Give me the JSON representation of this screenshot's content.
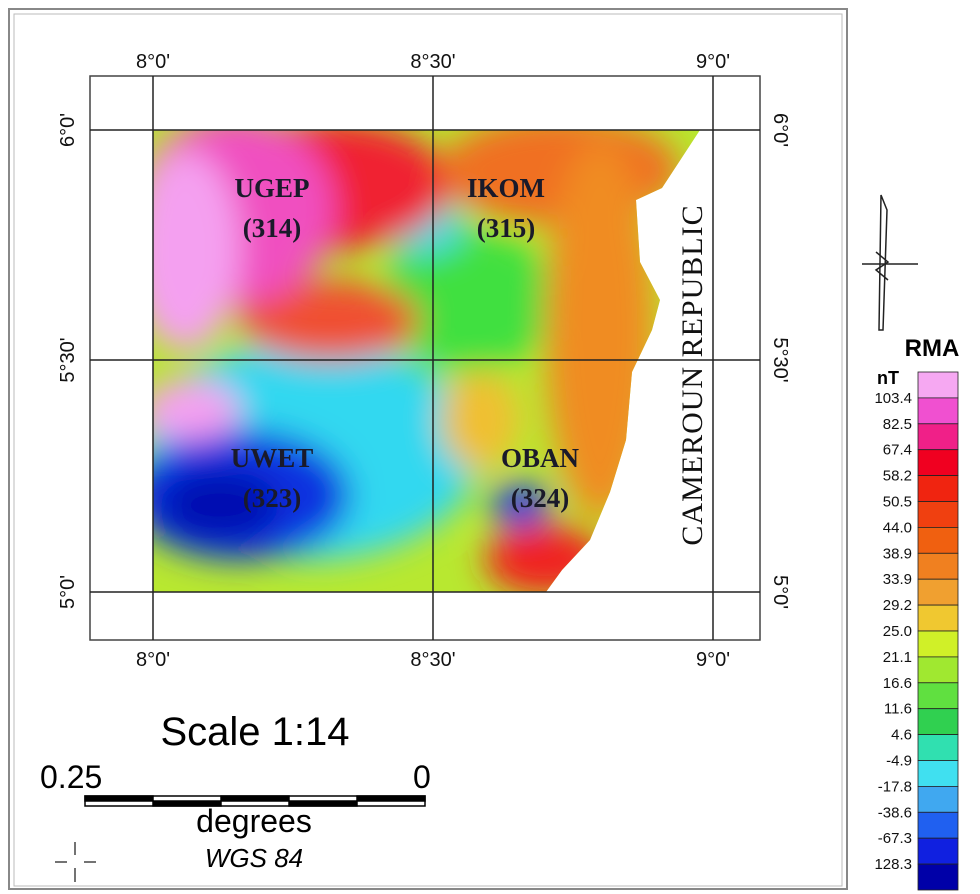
{
  "map": {
    "top_labels": [
      "8°0'",
      "8°30'",
      "9°0'"
    ],
    "bottom_labels": [
      "8°0'",
      "8°30'",
      "9°0'"
    ],
    "left_labels": [
      "6°0'",
      "5°30'",
      "5°0'"
    ],
    "right_labels": [
      "6°0'",
      "5°30'",
      "5°0'"
    ],
    "places": [
      {
        "name": "UGEP",
        "code": "(314)"
      },
      {
        "name": "IKOM",
        "code": "(315)"
      },
      {
        "name": "UWET",
        "code": "(323)"
      },
      {
        "name": "OBAN",
        "code": "(324)"
      }
    ],
    "country": "CAMEROUN REPUBLIC"
  },
  "legend": {
    "title": "RMA",
    "unit": "nT",
    "labels": [
      "103.4",
      "82.5",
      "67.4",
      "58.2",
      "50.5",
      "44.0",
      "38.9",
      "33.9",
      "29.2",
      "25.0",
      "21.1",
      "16.6",
      "11.6",
      "4.6",
      "-4.9",
      "-17.8",
      "-38.6",
      "-67.3",
      "128.3"
    ]
  },
  "scale": {
    "title": "Scale 1:14",
    "left": "0.25",
    "right": "0",
    "unit": "degrees",
    "datum": "WGS 84"
  }
}
